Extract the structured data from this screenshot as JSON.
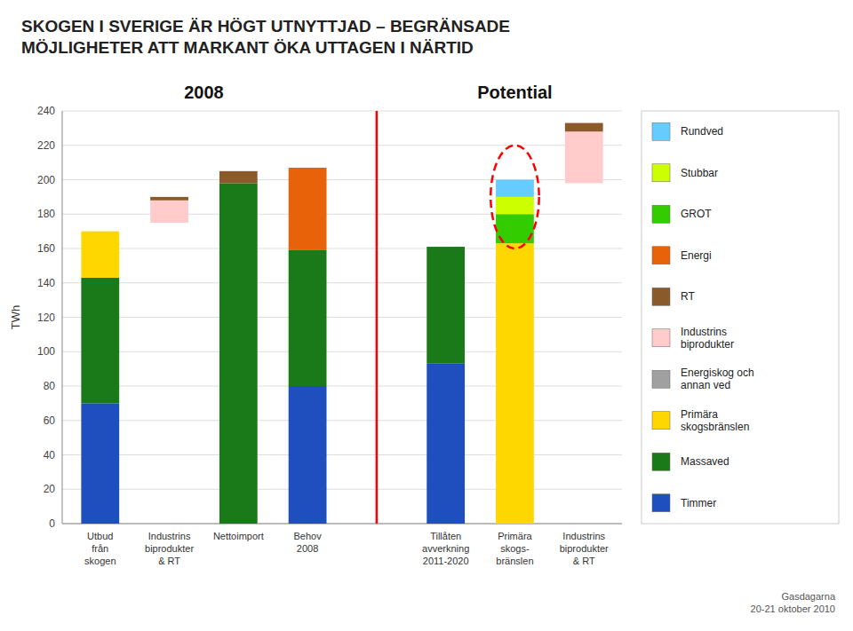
{
  "chart_data": {
    "type": "bar",
    "stacked": true,
    "title": "SKOGEN I SVERIGE ÄR HÖGT UTNYTTJAD – BEGRÄNSADE\nMÖJLIGHETER ATT MARKANT ÖKA UTTAGEN I NÄRTID",
    "y_label": "TWh",
    "categories": [
      "Utbud\nfrån\nskogen",
      "Industrins\nbiprodukter\n& RT",
      "Nettoimport",
      "Behov\n2008",
      "Tillåten\navverkning\n2011-2020",
      "Primära\nskogs-\nbränslen",
      "Industrins\nbiprodukter\n& RT"
    ],
    "bottoms": [
      0,
      175,
      0,
      0,
      0,
      0,
      198
    ],
    "groups": [
      {
        "label": "2008",
        "size": 4
      },
      {
        "label": "Potential",
        "size": 3
      }
    ],
    "series": [
      {
        "name": "Timmer",
        "color": "#1F4EBF",
        "values": [
          70,
          null,
          null,
          80,
          93,
          null,
          null
        ]
      },
      {
        "name": "Massaved",
        "color": "#1A7A1A",
        "values": [
          73,
          null,
          198,
          79,
          68,
          null,
          null
        ]
      },
      {
        "name": "Primära\nskogsbränslen",
        "color": "#FFD700",
        "values": [
          27,
          null,
          null,
          null,
          null,
          163,
          null
        ]
      },
      {
        "name": "Energiskog och\nannan ved",
        "color": "#A0A0A0",
        "values": [
          null,
          null,
          null,
          null,
          null,
          null,
          null
        ]
      },
      {
        "name": "Industrins\nbiprodukter",
        "color": "#FFCBCB",
        "values": [
          null,
          13,
          null,
          null,
          null,
          null,
          30
        ]
      },
      {
        "name": "RT",
        "color": "#8B5A2B",
        "values": [
          null,
          2,
          7,
          null,
          null,
          null,
          5
        ]
      },
      {
        "name": "Energi",
        "color": "#E8620A",
        "values": [
          null,
          null,
          null,
          48,
          null,
          null,
          null
        ]
      },
      {
        "name": "GROT",
        "color": "#33CC00",
        "values": [
          null,
          null,
          null,
          null,
          null,
          17,
          null
        ]
      },
      {
        "name": "Stubbar",
        "color": "#CCFF00",
        "values": [
          null,
          null,
          null,
          null,
          null,
          10,
          null
        ]
      },
      {
        "name": "Rundved",
        "color": "#66CCFF",
        "values": [
          null,
          null,
          null,
          null,
          null,
          10,
          null
        ]
      }
    ],
    "highlight": {
      "index": 5,
      "ylim": [
        160,
        220
      ]
    },
    "annotations": [
      "Gasdagarna\n20-21 oktober 2010"
    ],
    "ylim": [
      0,
      240
    ],
    "yticks": [
      0,
      20,
      40,
      60,
      80,
      100,
      120,
      140,
      160,
      180,
      200,
      220,
      240
    ],
    "grid": true,
    "legend": "right"
  }
}
